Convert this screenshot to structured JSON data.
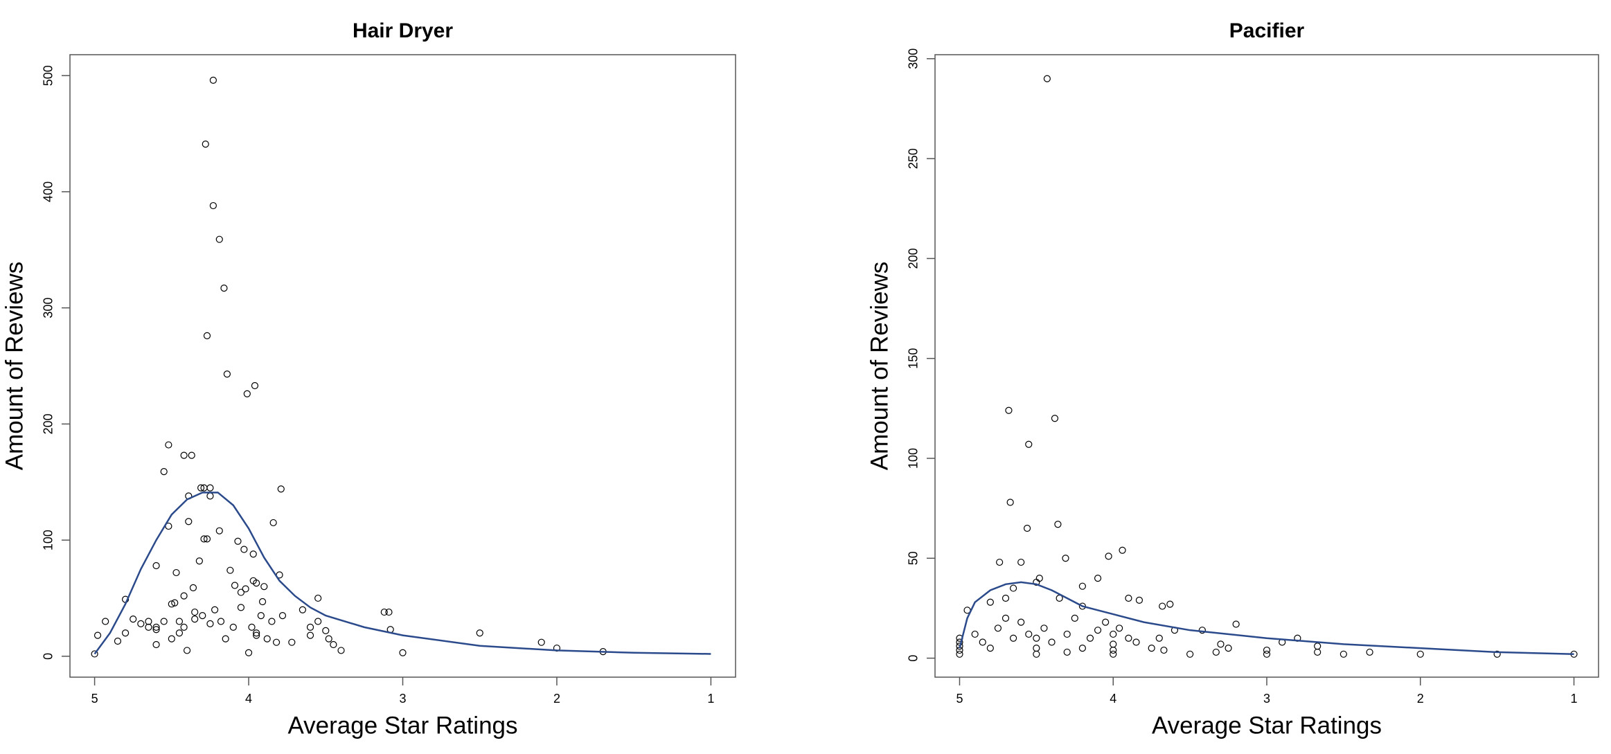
{
  "chart_data": [
    {
      "type": "scatter",
      "title": "Hair Dryer",
      "xlabel": "Average Star Ratings",
      "ylabel": "Amount of Reviews",
      "xlim": [
        5.16,
        0.84
      ],
      "ylim": [
        -18,
        518
      ],
      "xticks": [
        5,
        4,
        3,
        2,
        1
      ],
      "yticks": [
        0,
        100,
        200,
        300,
        400,
        500
      ],
      "series": [
        {
          "mode": "markers",
          "color": "#000000",
          "x": [
            4.23,
            4.28,
            4.23,
            4.19,
            4.16,
            4.27,
            4.14,
            4.01,
            3.96,
            4.52,
            4.42,
            4.37,
            4.55,
            3.79,
            4.29,
            4.25,
            4.31,
            4.25,
            4.39,
            4.52,
            4.39,
            3.84,
            4.19,
            4.27,
            4.29,
            4.07,
            4.32,
            4.03,
            3.97,
            4.6,
            4.12,
            4.47,
            3.8,
            3.97,
            3.95,
            4.36,
            4.09,
            4.02,
            3.9,
            4.42,
            4.05,
            4.48,
            4.8,
            4.5,
            3.91,
            3.55,
            4.93,
            4.98,
            4.85,
            4.8,
            4.75,
            4.7,
            4.65,
            4.6,
            4.6,
            4.6,
            4.5,
            4.45,
            4.42,
            4.4,
            4.35,
            4.3,
            4.25,
            4.22,
            4.18,
            4.15,
            4.1,
            4.05,
            4.0,
            3.98,
            3.95,
            3.92,
            3.88,
            3.85,
            3.82,
            3.78,
            3.72,
            3.65,
            3.6,
            3.55,
            3.5,
            3.48,
            3.45,
            3.4,
            3.12,
            3.09,
            3.08,
            3.0,
            2.5,
            2.1,
            2.0,
            1.7,
            5.0,
            4.55,
            4.45,
            4.35,
            3.6,
            3.95,
            4.65
          ],
          "values": [
            496,
            441,
            388,
            359,
            317,
            276,
            243,
            226,
            233,
            182,
            173,
            173,
            159,
            144,
            145,
            145,
            145,
            138,
            138,
            112,
            116,
            115,
            108,
            101,
            101,
            99,
            82,
            92,
            88,
            78,
            74,
            72,
            70,
            65,
            63,
            59,
            61,
            58,
            60,
            52,
            55,
            46,
            49,
            45,
            47,
            50,
            30,
            18,
            13,
            20,
            32,
            28,
            30,
            25,
            23,
            10,
            15,
            30,
            25,
            5,
            38,
            35,
            28,
            40,
            30,
            15,
            25,
            42,
            3,
            25,
            20,
            35,
            15,
            30,
            12,
            35,
            12,
            40,
            18,
            30,
            22,
            15,
            10,
            5,
            38,
            38,
            23,
            3,
            20,
            12,
            7,
            4,
            2,
            30,
            20,
            32,
            25,
            18,
            25
          ]
        },
        {
          "mode": "line",
          "color": "#2b4a8b",
          "x": [
            5,
            4.9,
            4.8,
            4.7,
            4.6,
            4.5,
            4.4,
            4.3,
            4.2,
            4.1,
            4.0,
            3.9,
            3.8,
            3.7,
            3.6,
            3.5,
            3.25,
            3,
            2.5,
            2,
            1.5,
            1
          ],
          "values": [
            2,
            20,
            45,
            75,
            100,
            122,
            135,
            141,
            141,
            130,
            110,
            85,
            65,
            52,
            42,
            35,
            25,
            18,
            9,
            5,
            3,
            2
          ]
        }
      ]
    },
    {
      "type": "scatter",
      "title": "Pacifier",
      "xlabel": "Average Star Ratings",
      "ylabel": "Amount of Reviews",
      "xlim": [
        5.16,
        0.84
      ],
      "ylim": [
        -9.5,
        302
      ],
      "xticks": [
        5,
        4,
        3,
        2,
        1
      ],
      "yticks": [
        0,
        50,
        100,
        150,
        200,
        250,
        300
      ],
      "series": [
        {
          "mode": "markers",
          "color": "#000000",
          "x": [
            4.43,
            4.68,
            4.38,
            4.55,
            4.67,
            4.36,
            4.56,
            3.94,
            4.31,
            4.03,
            4.48,
            4.74,
            4.6,
            4.5,
            4.65,
            4.1,
            4.2,
            3.9,
            3.83,
            4.35,
            3.68,
            3.63,
            4.8,
            4.95,
            4.7,
            4.2,
            3.96,
            3.42,
            3.2,
            3.6,
            5,
            5,
            5,
            5,
            5,
            4.9,
            4.85,
            4.8,
            4.75,
            4.7,
            4.65,
            4.6,
            4.55,
            4.5,
            4.5,
            4.5,
            4.45,
            4.4,
            4.3,
            4.3,
            4.25,
            4.2,
            4.15,
            4.1,
            4.05,
            4,
            4,
            4,
            4,
            3.9,
            3.85,
            3.75,
            3.7,
            3.67,
            3.5,
            3.33,
            3.3,
            3.25,
            3,
            3,
            2.9,
            2.8,
            2.67,
            2.67,
            2.5,
            2.33,
            2,
            1.5,
            1
          ],
          "values": [
            290,
            124,
            120,
            107,
            78,
            67,
            65,
            54,
            50,
            51,
            40,
            48,
            48,
            38,
            35,
            40,
            36,
            30,
            29,
            30,
            26,
            27,
            28,
            24,
            30,
            26,
            15,
            14,
            17,
            14,
            2,
            4,
            6,
            8,
            10,
            12,
            8,
            5,
            15,
            20,
            10,
            18,
            12,
            5,
            2,
            10,
            15,
            8,
            3,
            12,
            20,
            5,
            10,
            14,
            18,
            2,
            4,
            7,
            12,
            10,
            8,
            5,
            10,
            4,
            2,
            3,
            7,
            5,
            2,
            4,
            8,
            10,
            3,
            6,
            2,
            3,
            2,
            2,
            2
          ]
        },
        {
          "mode": "line",
          "color": "#2b4a8b",
          "x": [
            5,
            4.95,
            4.9,
            4.8,
            4.7,
            4.6,
            4.5,
            4.4,
            4.3,
            4.2,
            4,
            3.8,
            3.5,
            3,
            2.5,
            2,
            1.5,
            1
          ],
          "values": [
            5,
            20,
            28,
            34,
            37,
            38,
            37,
            34,
            30,
            26,
            22,
            18,
            14,
            10,
            7,
            5,
            3,
            2
          ]
        }
      ]
    }
  ]
}
